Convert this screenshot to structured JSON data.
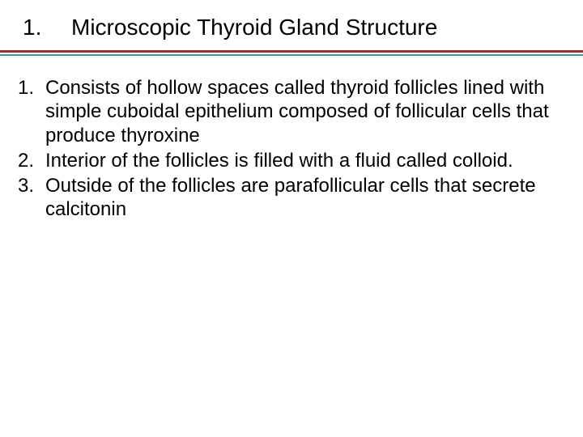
{
  "title": {
    "number": "1.",
    "text": "Microscopic Thyroid Gland Structure"
  },
  "divider": {
    "top_color": "#9a2f2a",
    "bottom_color": "#3f9a94"
  },
  "items": [
    {
      "number": "1.",
      "text": "Consists of hollow spaces called thyroid follicles lined with simple cuboidal epithelium composed of follicular cells that produce thyroxine"
    },
    {
      "number": "2.",
      "text": "Interior of the follicles is filled with a fluid called colloid."
    },
    {
      "number": "3.",
      "text": "Outside of the follicles are parafollicular cells that secrete calcitonin"
    }
  ]
}
